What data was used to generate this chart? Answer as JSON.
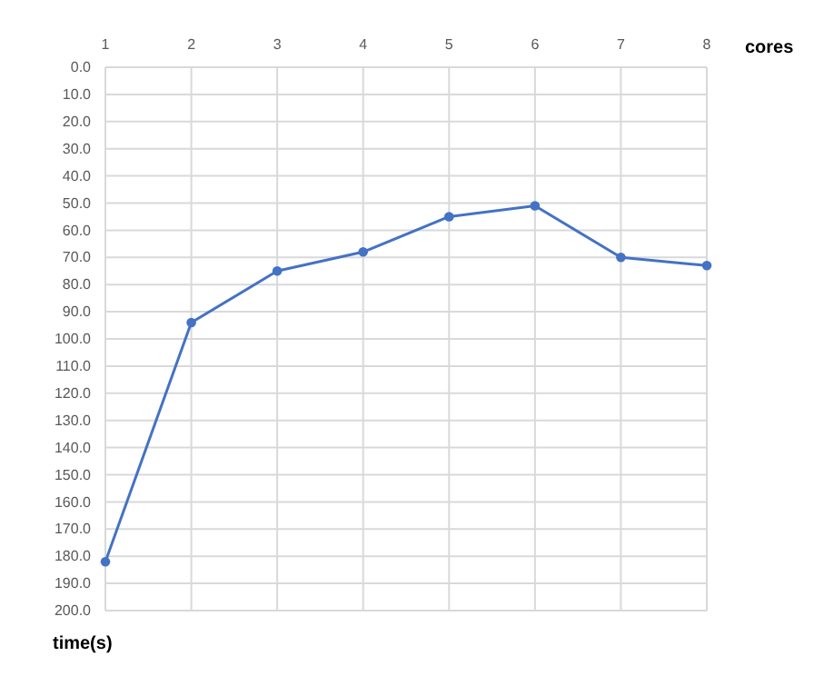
{
  "chart_data": {
    "type": "line",
    "xlabel": "cores",
    "ylabel": "time(s)",
    "x": [
      1,
      2,
      3,
      4,
      5,
      6,
      7,
      8
    ],
    "series": [
      {
        "color": "#4472c4",
        "values": [
          182,
          94,
          75,
          68,
          55,
          51,
          70,
          73
        ]
      }
    ],
    "xlim": [
      1,
      8
    ],
    "xticks": [
      1,
      2,
      3,
      4,
      5,
      6,
      7,
      8
    ],
    "ylim": [
      200,
      0
    ],
    "yticks": [
      {
        "value": 0,
        "label": "0.0"
      },
      {
        "value": 10,
        "label": "10.0"
      },
      {
        "value": 20,
        "label": "20.0"
      },
      {
        "value": 30,
        "label": "30.0"
      },
      {
        "value": 40,
        "label": "40.0"
      },
      {
        "value": 50,
        "label": "50.0"
      },
      {
        "value": 60,
        "label": "60.0"
      },
      {
        "value": 70,
        "label": "70.0"
      },
      {
        "value": 80,
        "label": "80.0"
      },
      {
        "value": 90,
        "label": "90.0"
      },
      {
        "value": 100,
        "label": "100.0"
      },
      {
        "value": 110,
        "label": "110.0"
      },
      {
        "value": 120,
        "label": "120.0"
      },
      {
        "value": 130,
        "label": "130.0"
      },
      {
        "value": 140,
        "label": "140.0"
      },
      {
        "value": 150,
        "label": "150.0"
      },
      {
        "value": 160,
        "label": "160.0"
      },
      {
        "value": 170,
        "label": "170.0"
      },
      {
        "value": 180,
        "label": "180.0"
      },
      {
        "value": 190,
        "label": "190.0"
      },
      {
        "value": 200,
        "label": "200.0"
      }
    ],
    "grid": true,
    "marker": "circle",
    "line_style": "solid"
  }
}
